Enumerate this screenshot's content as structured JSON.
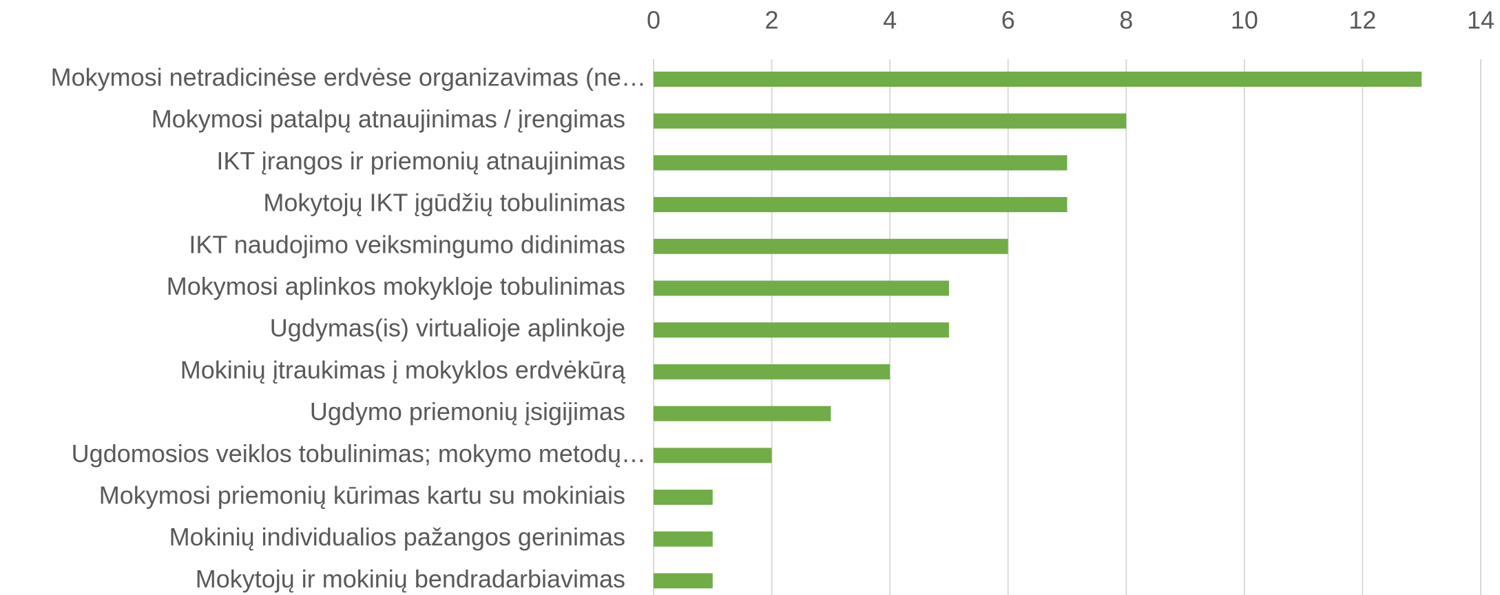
{
  "chart_data": {
    "type": "hbar",
    "categories": [
      "Mokymosi netradicinėse erdvėse organizavimas (ne…",
      "Mokymosi patalpų atnaujinimas / įrengimas",
      "IKT įrangos ir priemonių atnaujinimas",
      "Mokytojų IKT įgūdžių tobulinimas",
      "IKT naudojimo veiksmingumo didinimas",
      "Mokymosi aplinkos mokykloje tobulinimas",
      "Ugdymas(is) virtualioje aplinkoje",
      "Mokinių įtraukimas į mokyklos erdvėkūrą",
      "Ugdymo priemonių įsigijimas",
      "Ugdomosios veiklos tobulinimas; mokymo metodų…",
      "Mokymosi priemonių kūrimas kartu su mokiniais",
      "Mokinių individualios pažangos gerinimas",
      "Mokytojų ir mokinių bendradarbiavimas"
    ],
    "values": [
      13,
      8,
      7,
      7,
      6,
      5,
      5,
      4,
      3,
      2,
      1,
      1,
      1
    ],
    "color": "#70ad47",
    "xlim": [
      0,
      14
    ],
    "xticks": [
      0,
      2,
      4,
      6,
      8,
      10,
      12,
      14
    ],
    "grid": true
  }
}
